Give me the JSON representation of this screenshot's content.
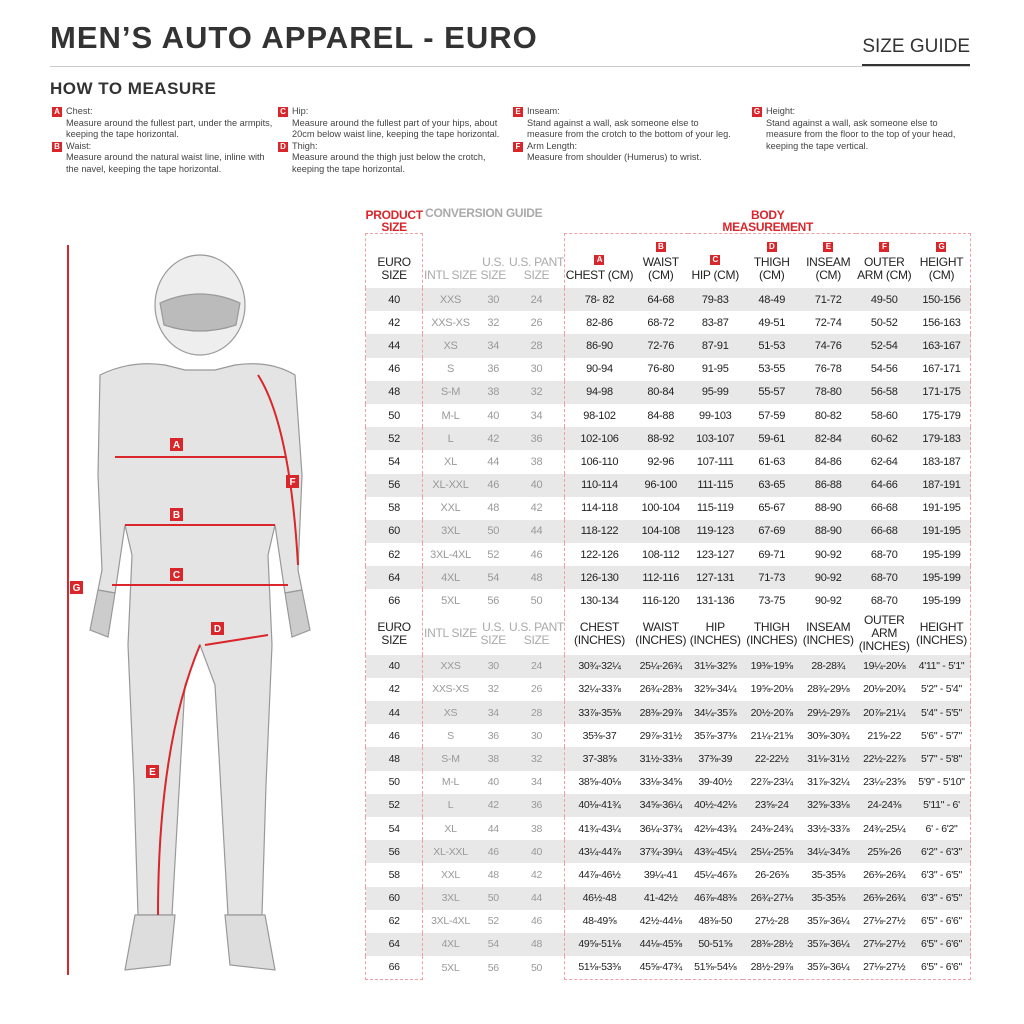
{
  "header": {
    "title": "MEN’S AUTO APPAREL - EURO",
    "size_guide": "SIZE GUIDE"
  },
  "how_to": {
    "title": "HOW TO MEASURE",
    "items": [
      {
        "letter": "A",
        "label": "Chest:",
        "text": "Measure around the fullest part, under the armpits, keeping the tape horizontal."
      },
      {
        "letter": "B",
        "label": "Waist:",
        "text": "Measure around the natural waist line, inline with the navel, keeping the tape horizontal."
      },
      {
        "letter": "C",
        "label": "Hip:",
        "text": "Measure around the fullest part of your hips, about 20cm below waist line, keeping the tape horizontal."
      },
      {
        "letter": "D",
        "label": "Thigh:",
        "text": "Measure around the thigh just below the crotch, keeping the tape horizontal."
      },
      {
        "letter": "E",
        "label": "Inseam:",
        "text": "Stand against a wall, ask someone else to measure from the crotch to the bottom of your leg."
      },
      {
        "letter": "F",
        "label": "Arm Length:",
        "text": "Measure from shoulder (Humerus) to wrist."
      },
      {
        "letter": "G",
        "label": "Height:",
        "text": "Stand against a wall, ask someone else to measure from the floor to the top of your head, keeping the tape vertical."
      }
    ]
  },
  "colors": {
    "accent": "#d9262b",
    "shade": "#e8e8e8"
  },
  "table": {
    "groups": {
      "product": "PRODUCT SIZE",
      "conversion": "CONVERSION GUIDE",
      "body": "BODY MEASUREMENT"
    },
    "cm_headers": [
      "EURO SIZE",
      "INTL SIZE",
      "U.S. SIZE",
      "U.S. PANT SIZE",
      "CHEST (CM)",
      "WAIST (CM)",
      "HIP (CM)",
      "THIGH (CM)",
      "INSEAM (CM)",
      "OUTER ARM (CM)",
      "HEIGHT (CM)"
    ],
    "inch_headers": [
      "EURO SIZE",
      "INTL SIZE",
      "U.S. SIZE",
      "U.S. PANT SIZE",
      "CHEST (INCHES)",
      "WAIST (INCHES)",
      "HIP (INCHES)",
      "THIGH (INCHES)",
      "INSEAM (INCHES)",
      "OUTER ARM (INCHES)",
      "HEIGHT (INCHES)"
    ],
    "letters": [
      "A",
      "B",
      "C",
      "D",
      "E",
      "F",
      "G"
    ],
    "cm_rows": [
      [
        "40",
        "XXS",
        "30",
        "24",
        "78- 82",
        "64-68",
        "79-83",
        "48-49",
        "71-72",
        "49-50",
        "150-156"
      ],
      [
        "42",
        "XXS-XS",
        "32",
        "26",
        "82-86",
        "68-72",
        "83-87",
        "49-51",
        "72-74",
        "50-52",
        "156-163"
      ],
      [
        "44",
        "XS",
        "34",
        "28",
        "86-90",
        "72-76",
        "87-91",
        "51-53",
        "74-76",
        "52-54",
        "163-167"
      ],
      [
        "46",
        "S",
        "36",
        "30",
        "90-94",
        "76-80",
        "91-95",
        "53-55",
        "76-78",
        "54-56",
        "167-171"
      ],
      [
        "48",
        "S-M",
        "38",
        "32",
        "94-98",
        "80-84",
        "95-99",
        "55-57",
        "78-80",
        "56-58",
        "171-175"
      ],
      [
        "50",
        "M-L",
        "40",
        "34",
        "98-102",
        "84-88",
        "99-103",
        "57-59",
        "80-82",
        "58-60",
        "175-179"
      ],
      [
        "52",
        "L",
        "42",
        "36",
        "102-106",
        "88-92",
        "103-107",
        "59-61",
        "82-84",
        "60-62",
        "179-183"
      ],
      [
        "54",
        "XL",
        "44",
        "38",
        "106-110",
        "92-96",
        "107-111",
        "61-63",
        "84-86",
        "62-64",
        "183-187"
      ],
      [
        "56",
        "XL-XXL",
        "46",
        "40",
        "110-114",
        "96-100",
        "111-115",
        "63-65",
        "86-88",
        "64-66",
        "187-191"
      ],
      [
        "58",
        "XXL",
        "48",
        "42",
        "114-118",
        "100-104",
        "115-119",
        "65-67",
        "88-90",
        "66-68",
        "191-195"
      ],
      [
        "60",
        "3XL",
        "50",
        "44",
        "118-122",
        "104-108",
        "119-123",
        "67-69",
        "88-90",
        "66-68",
        "191-195"
      ],
      [
        "62",
        "3XL-4XL",
        "52",
        "46",
        "122-126",
        "108-112",
        "123-127",
        "69-71",
        "90-92",
        "68-70",
        "195-199"
      ],
      [
        "64",
        "4XL",
        "54",
        "48",
        "126-130",
        "112-116",
        "127-131",
        "71-73",
        "90-92",
        "68-70",
        "195-199"
      ],
      [
        "66",
        "5XL",
        "56",
        "50",
        "130-134",
        "116-120",
        "131-136",
        "73-75",
        "90-92",
        "68-70",
        "195-199"
      ]
    ],
    "inch_rows": [
      [
        "40",
        "XXS",
        "30",
        "24",
        "30¾-32¼",
        "25¼-26¾",
        "31⅛-32⅝",
        "19⅜-19⅝",
        "28-28¾",
        "19¼-20⅛",
        "4'11\" - 5'1\""
      ],
      [
        "42",
        "XXS-XS",
        "32",
        "26",
        "32¼-33⅞",
        "26¾-28⅜",
        "32⅝-34¼",
        "19⅝-20⅛",
        "28¾-29⅛",
        "20⅛-20¾",
        "5'2\" - 5'4\""
      ],
      [
        "44",
        "XS",
        "34",
        "28",
        "33⅞-35⅜",
        "28⅜-29⅞",
        "34¼-35⅞",
        "20½-20⅞",
        "29½-29⅞",
        "20⅞-21¼",
        "5'4\" - 5'5\""
      ],
      [
        "46",
        "S",
        "36",
        "30",
        "35⅜-37",
        "29⅞-31½",
        "35⅞-37⅜",
        "21¼-21⅝",
        "30⅜-30¾",
        "21⅝-22",
        "5'6\" - 5'7\""
      ],
      [
        "48",
        "S-M",
        "38",
        "32",
        "37-38⅝",
        "31½-33⅛",
        "37⅜-39",
        "22-22½",
        "31⅛-31½",
        "22½-22⅞",
        "5'7\" - 5'8\""
      ],
      [
        "50",
        "M-L",
        "40",
        "34",
        "38⅝-40⅛",
        "33⅛-34⅝",
        "39-40½",
        "22⅞-23¼",
        "31⅞-32¼",
        "23¼-23⅝",
        "5'9\" - 5'10\""
      ],
      [
        "52",
        "L",
        "42",
        "36",
        "40⅛-41¾",
        "34⅝-36¼",
        "40½-42⅛",
        "23⅝-24",
        "32⅝-33⅛",
        "24-24⅜",
        "5'11\" - 6'"
      ],
      [
        "54",
        "XL",
        "44",
        "38",
        "41¾-43¼",
        "36¼-37¾",
        "42⅛-43¾",
        "24⅜-24¾",
        "33½-33⅞",
        "24¾-25¼",
        "6' - 6'2\""
      ],
      [
        "56",
        "XL-XXL",
        "46",
        "40",
        "43¼-44⅞",
        "37¾-39¼",
        "43¾-45¼",
        "25¼-25⅝",
        "34¼-34⅝",
        "25⅝-26",
        "6'2\" - 6'3\""
      ],
      [
        "58",
        "XXL",
        "48",
        "42",
        "44⅞-46½",
        "39¼-41",
        "45¼-46⅞",
        "26-26⅜",
        "35-35⅜",
        "26⅜-26¾",
        "6'3\" - 6'5\""
      ],
      [
        "60",
        "3XL",
        "50",
        "44",
        "46½-48",
        "41-42½",
        "46⅞-48⅜",
        "26¾-27⅛",
        "35-35⅜",
        "26⅜-26¾",
        "6'3\" - 6'5\""
      ],
      [
        "62",
        "3XL-4XL",
        "52",
        "46",
        "48-49⅝",
        "42½-44⅛",
        "48⅜-50",
        "27½-28",
        "35⅞-36¼",
        "27⅛-27½",
        "6'5\" - 6'6\""
      ],
      [
        "64",
        "4XL",
        "54",
        "48",
        "49⅝-51⅛",
        "44⅛-45⅝",
        "50-51⅝",
        "28⅜-28½",
        "35⅞-36¼",
        "27⅛-27½",
        "6'5\" - 6'6\""
      ],
      [
        "66",
        "5XL",
        "56",
        "50",
        "51⅛-53⅜",
        "45⅝-47¾",
        "51⅝-54⅛",
        "28½-29⅞",
        "35⅞-36¼",
        "27⅛-27½",
        "6'5\" - 6'6\""
      ]
    ]
  }
}
